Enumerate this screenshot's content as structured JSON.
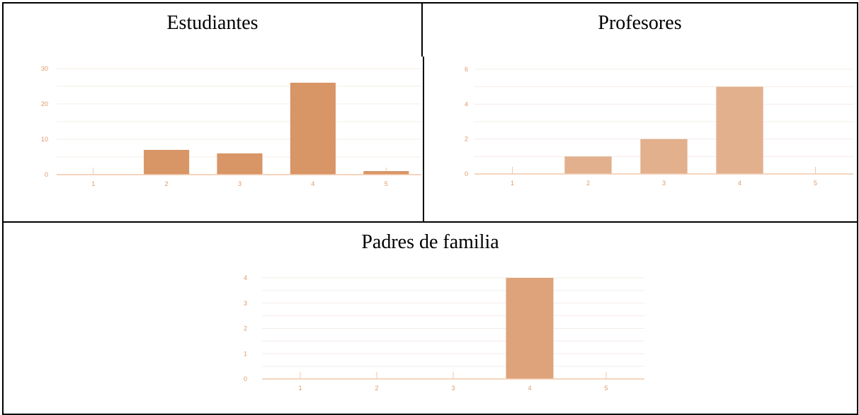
{
  "colors": {
    "estudiantes_bar": "#d89566",
    "profesores_bar": "#e2b08d",
    "padres_bar": "#dea37b",
    "axis": "#f2c7a8",
    "grid": "#f4ece6",
    "tick_label": "#e09a6a"
  },
  "chart_data": [
    {
      "type": "bar",
      "title": "Estudiantes",
      "categories": [
        "1",
        "2",
        "3",
        "4",
        "5"
      ],
      "values": [
        0,
        7,
        6,
        26,
        1
      ],
      "ylim": [
        0,
        30
      ],
      "yticks": [
        "0",
        "10",
        "20",
        "30"
      ],
      "grid": true
    },
    {
      "type": "bar",
      "title": "Profesores",
      "categories": [
        "1",
        "2",
        "3",
        "4",
        "5"
      ],
      "values": [
        0,
        1,
        2,
        5,
        0
      ],
      "ylim": [
        0,
        6
      ],
      "yticks": [
        "0",
        "2",
        "4",
        "6"
      ],
      "grid": true
    },
    {
      "type": "bar",
      "title": "Padres de familia",
      "categories": [
        "1",
        "2",
        "3",
        "4",
        "5"
      ],
      "values": [
        0,
        0,
        0,
        4,
        0
      ],
      "ylim": [
        0,
        4
      ],
      "yticks": [
        "0",
        "1",
        "2",
        "3",
        "4"
      ],
      "grid": true
    }
  ]
}
